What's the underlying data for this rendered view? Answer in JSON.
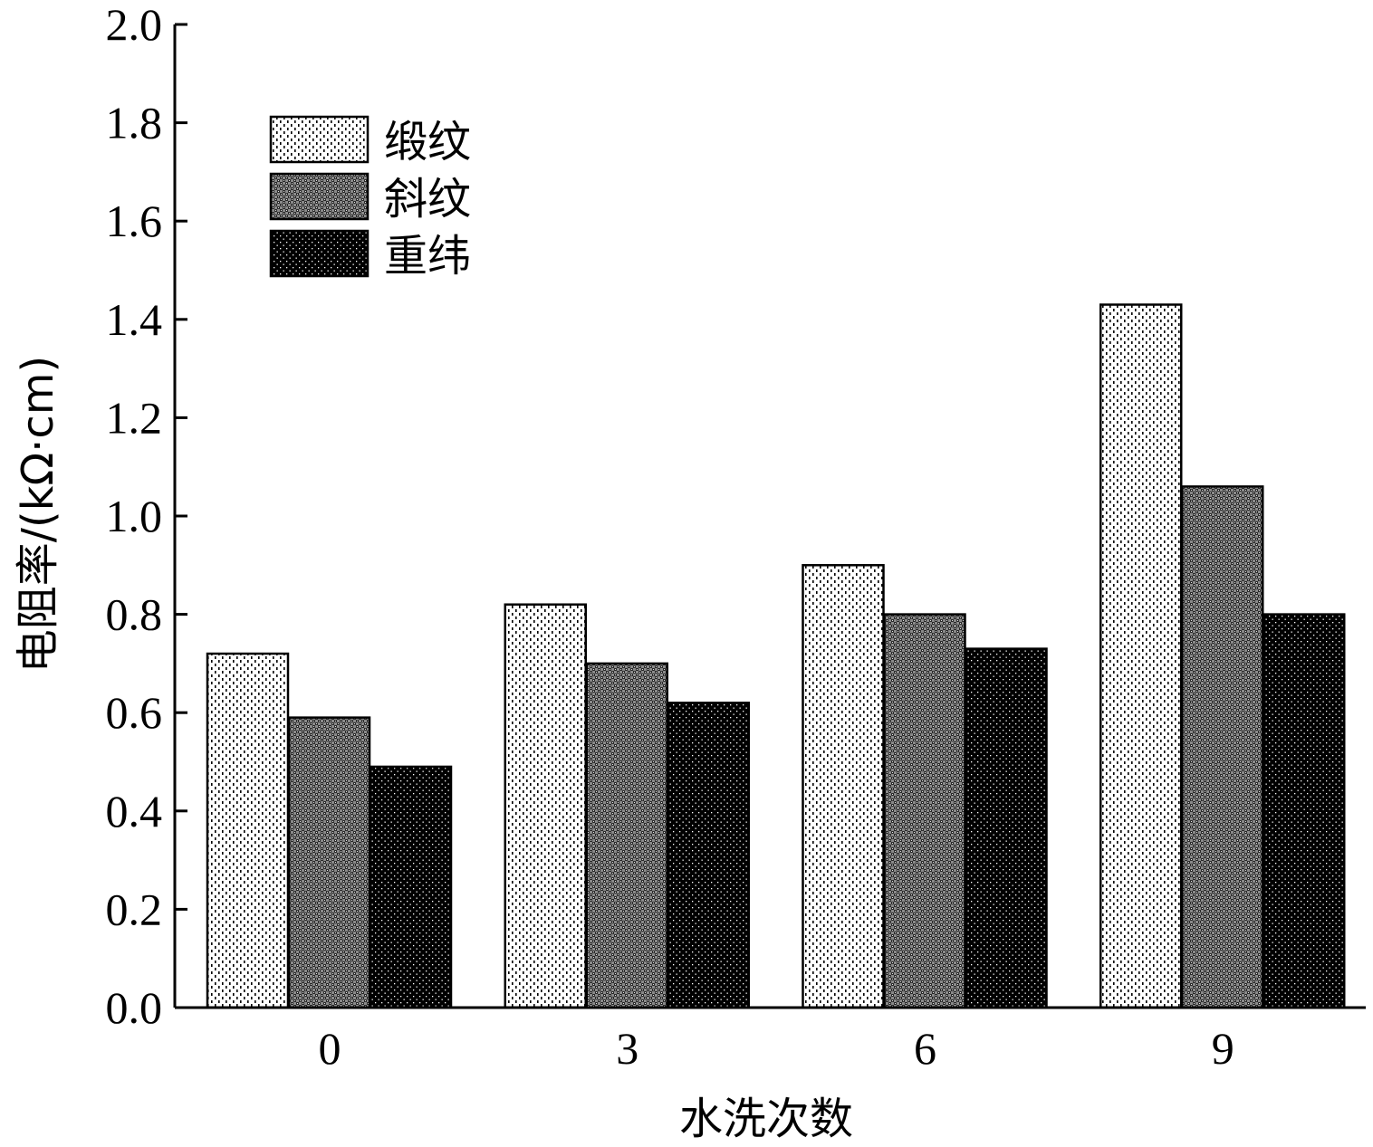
{
  "chart_data": {
    "type": "bar",
    "categories": [
      "0",
      "3",
      "6",
      "9"
    ],
    "series": [
      {
        "name": "缎纹",
        "values": [
          0.72,
          0.82,
          0.9,
          1.43
        ],
        "pattern": "sparse-dash"
      },
      {
        "name": "斜纹",
        "values": [
          0.59,
          0.7,
          0.8,
          1.06
        ],
        "pattern": "crosshatch"
      },
      {
        "name": "重纬",
        "values": [
          0.49,
          0.62,
          0.73,
          0.8
        ],
        "pattern": "dark-dots"
      }
    ],
    "xlabel": "水洗次数",
    "ylabel": "电阻率/(kΩ·cm)",
    "ylim": [
      0,
      2.0
    ],
    "yticks": [
      "0.0",
      "0.2",
      "0.4",
      "0.6",
      "0.8",
      "1.0",
      "1.2",
      "1.4",
      "1.6",
      "1.8",
      "2.0"
    ],
    "legend_position": "top-left",
    "grid": false,
    "colors": {
      "axis": "#000000",
      "background": "#ffffff"
    }
  }
}
